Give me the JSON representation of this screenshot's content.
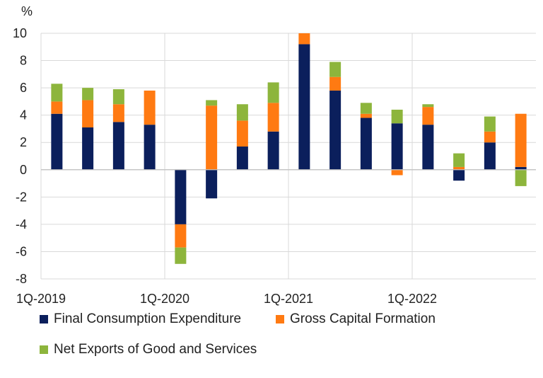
{
  "chart_data": {
    "type": "bar",
    "stacked": true,
    "unit_label": "%",
    "title": "",
    "xlabel": "",
    "ylabel": "",
    "ylim": [
      -8,
      10
    ],
    "yticks": [
      -8,
      -6,
      -4,
      -2,
      0,
      2,
      4,
      6,
      8,
      10
    ],
    "categories": [
      "1Q-2019",
      "2Q-2019",
      "3Q-2019",
      "4Q-2019",
      "1Q-2020",
      "2Q-2020",
      "3Q-2020",
      "4Q-2020",
      "1Q-2021",
      "2Q-2021",
      "3Q-2021",
      "4Q-2021",
      "1Q-2022",
      "2Q-2022",
      "3Q-2022",
      "4Q-2022"
    ],
    "x_tick_labels": [
      {
        "category": "1Q-2019",
        "label": "1Q-2019"
      },
      {
        "category": "1Q-2020",
        "label": "1Q-2020"
      },
      {
        "category": "1Q-2021",
        "label": "1Q-2021"
      },
      {
        "category": "1Q-2022",
        "label": "1Q-2022"
      }
    ],
    "grid": "vertical lines at year boundaries and horizontal lines at each y tick",
    "legend_position": "bottom",
    "series": [
      {
        "name": "Final Consumption Expenditure",
        "color": "#0b1f5c",
        "values": [
          4.1,
          3.1,
          3.5,
          3.3,
          -4.0,
          -2.1,
          1.7,
          2.8,
          9.2,
          5.8,
          3.8,
          3.4,
          3.3,
          -0.8,
          2.0,
          0.2
        ]
      },
      {
        "name": "Gross Capital Formation",
        "color": "#ff7a12",
        "values": [
          0.9,
          2.0,
          1.3,
          2.5,
          -1.7,
          4.7,
          1.9,
          2.1,
          0.8,
          1.0,
          0.3,
          -0.4,
          1.3,
          0.2,
          0.8,
          3.9
        ]
      },
      {
        "name": "Net Exports of Good and Services",
        "color": "#8db53c",
        "values": [
          1.3,
          0.9,
          1.1,
          0.0,
          -1.2,
          0.4,
          1.2,
          1.5,
          0.0,
          1.1,
          0.8,
          1.0,
          0.2,
          1.0,
          1.1,
          -1.2
        ]
      }
    ]
  }
}
